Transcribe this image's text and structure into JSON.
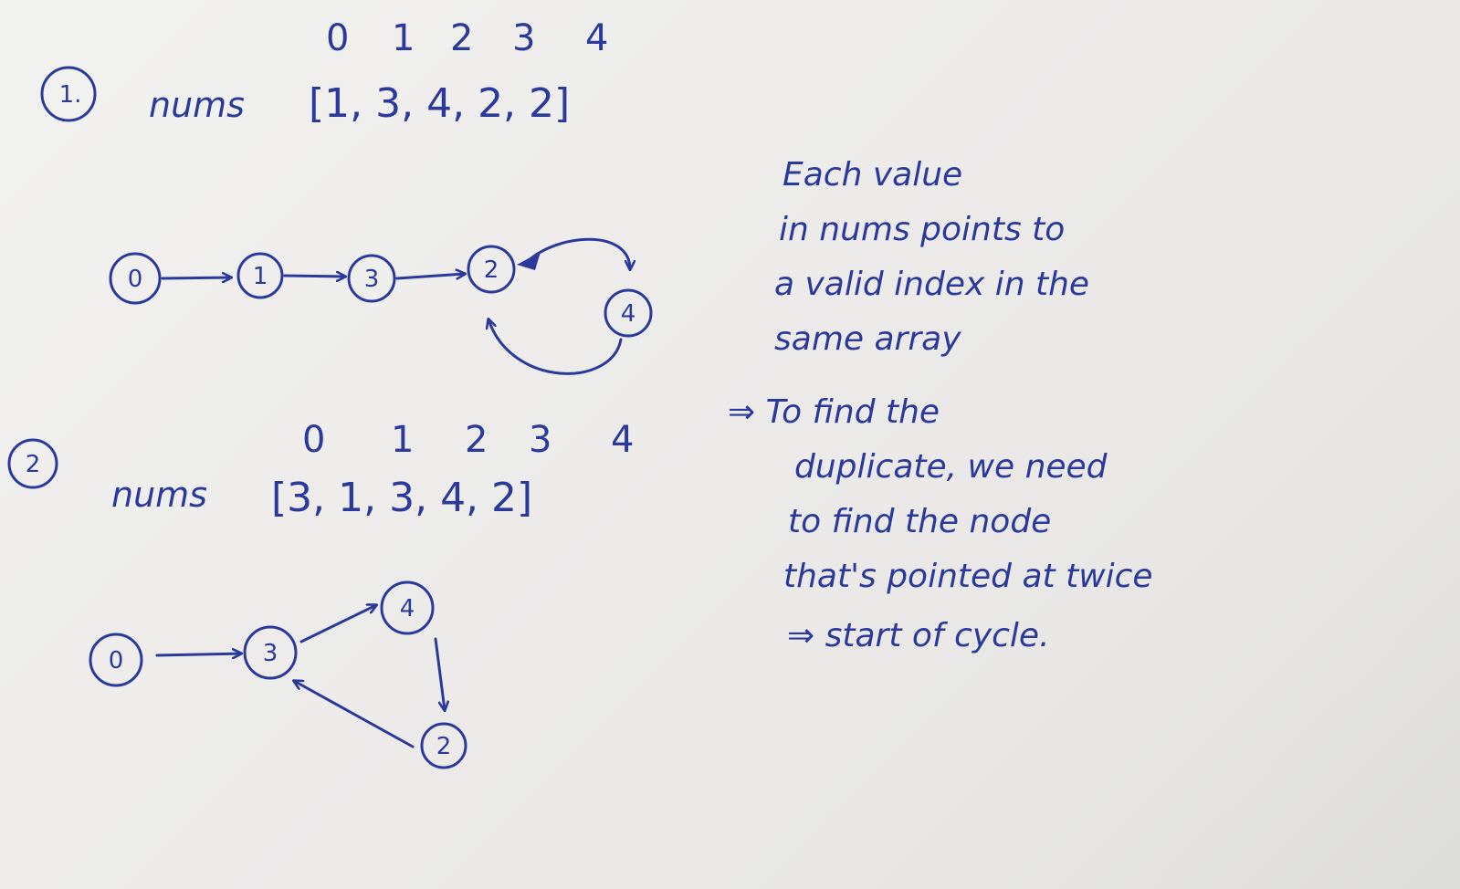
{
  "example1": {
    "marker": "1.",
    "index_labels": [
      "0",
      "1",
      "2",
      "3",
      "4"
    ],
    "array_text": "nums",
    "array_values": "[1, 3, 4, 2, 2]",
    "nodes": {
      "n0": "0",
      "n1": "1",
      "n3": "3",
      "n2": "2",
      "n4": "4"
    }
  },
  "example2": {
    "marker": "2",
    "index_labels": [
      "0",
      "1",
      "2",
      "3",
      "4"
    ],
    "array_text": "nums",
    "array_values": "[3, 1, 3, 4, 2]",
    "nodes": {
      "n0": "0",
      "n3": "3",
      "n4": "4",
      "n2": "2"
    }
  },
  "notes": {
    "line1": "Each value",
    "line2": "in nums points to",
    "line3": "a valid index in the",
    "line4": "same array",
    "line5": "⇒ To find the",
    "line6": "duplicate, we need",
    "line7": "to find the node",
    "line8": "that's pointed at twice",
    "line9": "⇒ start of cycle."
  }
}
